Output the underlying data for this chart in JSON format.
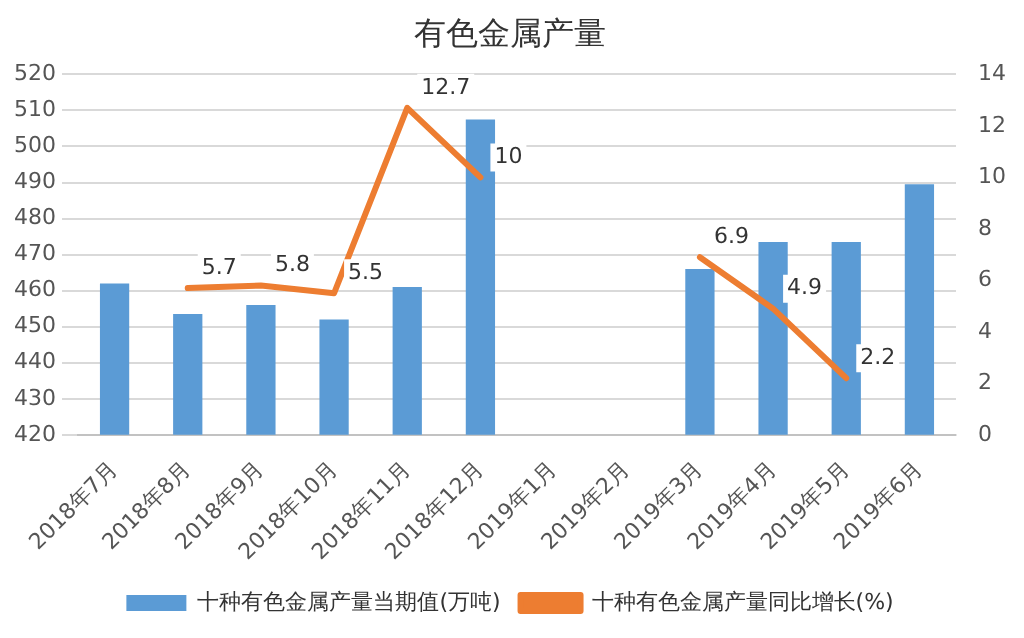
{
  "chart_data": {
    "type": "bar",
    "title": "有色金属产量",
    "categories": [
      "2018年7月",
      "2018年8月",
      "2018年9月",
      "2018年10月",
      "2018年11月",
      "2018年12月",
      "2019年1月",
      "2019年2月",
      "2019年3月",
      "2019年4月",
      "2019年5月",
      "2019年6月"
    ],
    "series": [
      {
        "name": "十种有色金属产量当期值(万吨)",
        "color": "#5b9bd5",
        "values": [
          462,
          453.5,
          456,
          452,
          461,
          507.5,
          null,
          null,
          466,
          473.5,
          473.5,
          489.5
        ]
      },
      {
        "name": "十种有色金属产量同比增长(%)",
        "type": "line",
        "axis": "y2",
        "color": "#ed7d31",
        "values": [
          null,
          5.7,
          5.8,
          5.5,
          12.7,
          10,
          null,
          null,
          6.9,
          4.9,
          2.2,
          null
        ],
        "value_labels": [
          null,
          "5.7",
          "5.8",
          "5.5",
          "12.7",
          "10",
          null,
          null,
          "6.9",
          "4.9",
          "2.2",
          null
        ]
      }
    ],
    "ylim": [
      420,
      520
    ],
    "yticks": [
      420,
      430,
      440,
      450,
      460,
      470,
      480,
      490,
      500,
      510,
      520
    ],
    "y2lim": [
      0,
      14
    ],
    "y2ticks": [
      0,
      2,
      4,
      6,
      8,
      10,
      12,
      14
    ],
    "grid": "y",
    "legend": "bottom",
    "marker": "none"
  }
}
